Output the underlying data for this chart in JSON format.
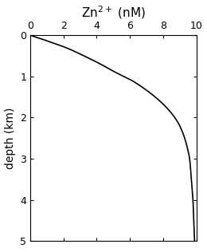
{
  "title": "Zn$^{2+}$ (nM)",
  "ylabel": "depth (km)",
  "xlim": [
    0,
    10
  ],
  "ylim": [
    5,
    0
  ],
  "xticks": [
    0,
    2,
    4,
    6,
    8,
    10
  ],
  "yticks": [
    0,
    1,
    2,
    3,
    4,
    5
  ],
  "line_color": "#000000",
  "line_width": 1.2,
  "bg_color": "#ffffff",
  "title_fontsize": 11,
  "label_fontsize": 10,
  "tick_fontsize": 9,
  "figsize": [
    2.6,
    3.16
  ],
  "dpi": 100,
  "curve_points": {
    "depth": [
      0.0,
      0.05,
      0.1,
      0.2,
      0.3,
      0.5,
      0.7,
      0.9,
      1.0,
      1.1,
      1.2,
      1.4,
      1.6,
      1.8,
      2.0,
      2.2,
      2.5,
      2.8,
      3.0,
      3.5,
      4.0,
      4.5,
      5.0
    ],
    "zn": [
      0.0,
      0.3,
      0.7,
      1.4,
      2.1,
      3.2,
      4.2,
      5.1,
      5.6,
      6.1,
      6.5,
      7.2,
      7.8,
      8.3,
      8.7,
      9.0,
      9.3,
      9.5,
      9.6,
      9.7,
      9.8,
      9.85,
      9.9
    ]
  }
}
